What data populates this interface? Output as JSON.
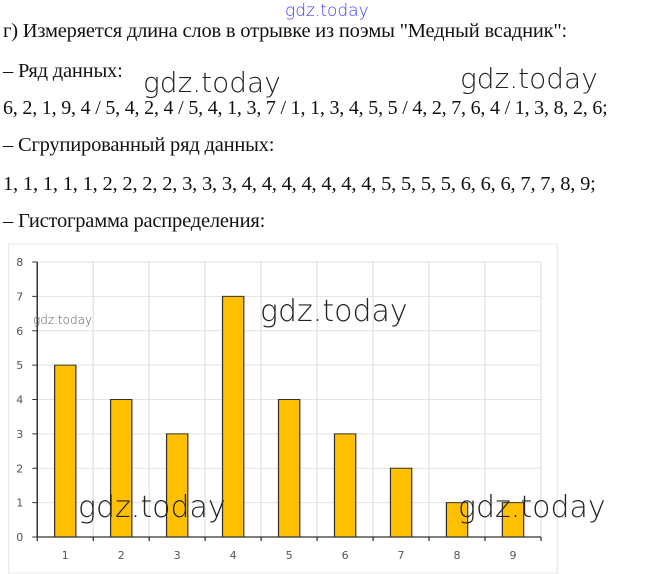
{
  "watermarks": [
    "gdz.today",
    "gdz.today",
    "gdz.today",
    "gdz.today",
    "gdz.today",
    "gdz.today",
    "gdz.today"
  ],
  "text": {
    "title": "г) Измеряется длина слов в отрывке из поэмы \"Медный всадник\":",
    "series_label": "– Ряд данных:",
    "series_values": "6, 2, 1, 9, 4 / 5, 4, 2, 4 / 5, 4, 1, 3, 7 / 1, 1, 3, 4, 5, 5 / 4, 2, 7, 6, 4 / 1, 3, 8, 2, 6;",
    "grouped_label": "– Сгрупированный ряд данных:",
    "grouped_values": "1, 1, 1, 1, 1, 2, 2, 2, 2, 3, 3, 3, 4, 4, 4, 4, 4, 4, 4, 5, 5, 5, 5, 6, 6, 6, 7, 7, 8, 9;",
    "histogram_label": "– Гистограмма распределения:"
  },
  "chart_data": {
    "type": "bar",
    "categories": [
      "1",
      "2",
      "3",
      "4",
      "5",
      "6",
      "7",
      "8",
      "9"
    ],
    "values": [
      5,
      4,
      3,
      7,
      4,
      3,
      2,
      1,
      1
    ],
    "yticks": [
      "0",
      "1",
      "2",
      "3",
      "4",
      "5",
      "6",
      "7",
      "8"
    ],
    "ylim": [
      0,
      8
    ],
    "grid": true,
    "bar_color": "#FFC000"
  }
}
